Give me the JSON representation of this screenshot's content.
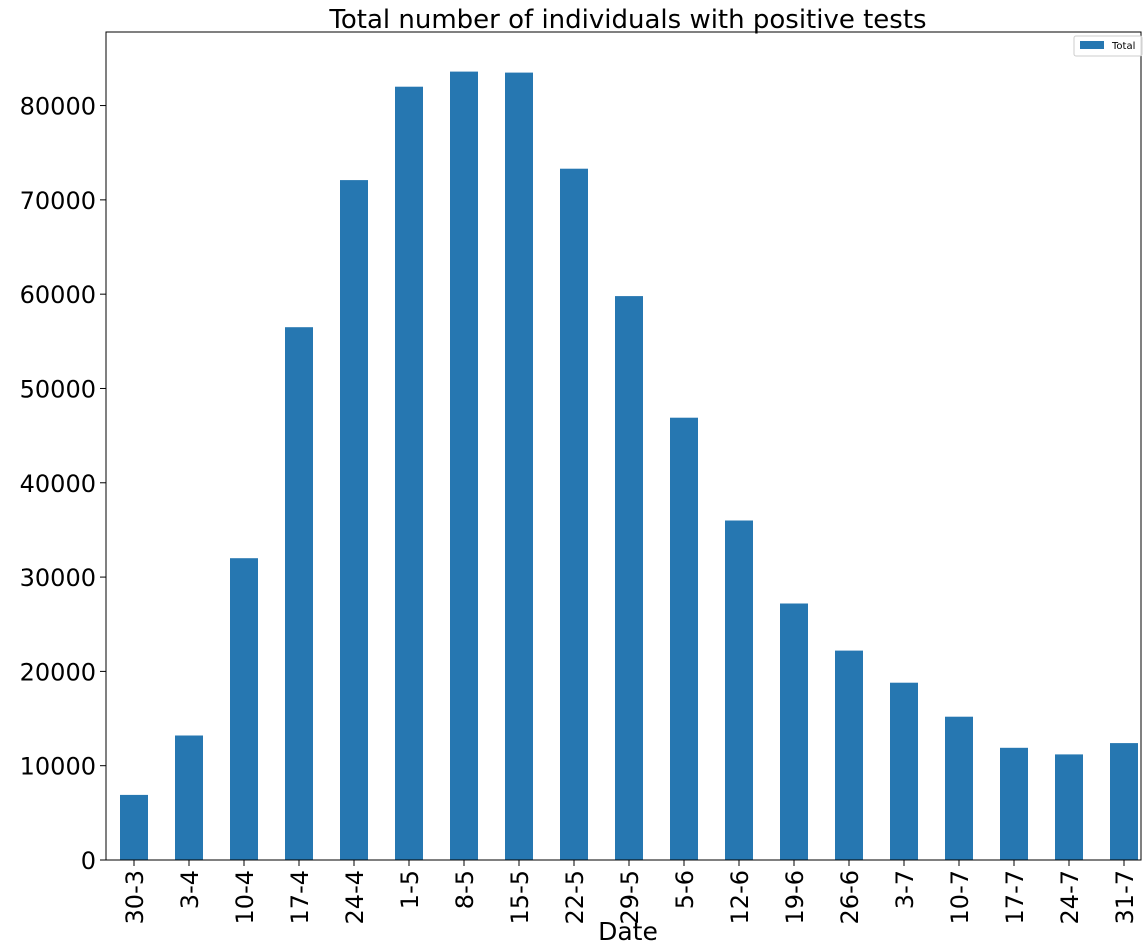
{
  "chart_data": {
    "type": "bar",
    "title": "Total number of individuals with positive tests",
    "xlabel": "Date",
    "ylabel": "",
    "categories": [
      "30-3",
      "3-4",
      "10-4",
      "17-4",
      "24-4",
      "1-5",
      "8-5",
      "15-5",
      "22-5",
      "29-5",
      "5-6",
      "12-6",
      "19-6",
      "26-6",
      "3-7",
      "10-7",
      "17-7",
      "24-7",
      "31-7"
    ],
    "series": [
      {
        "name": "Total",
        "color": "#2677b1",
        "values": [
          6900,
          13200,
          32000,
          56500,
          72100,
          82000,
          83600,
          83500,
          73300,
          59800,
          46900,
          36000,
          27200,
          22200,
          18800,
          15200,
          11900,
          11200,
          12400
        ]
      }
    ],
    "ylim": [
      0,
      87800
    ],
    "yticks": [
      0,
      10000,
      20000,
      30000,
      40000,
      50000,
      60000,
      70000,
      80000
    ],
    "grid": false,
    "legend_position": "top-right"
  }
}
